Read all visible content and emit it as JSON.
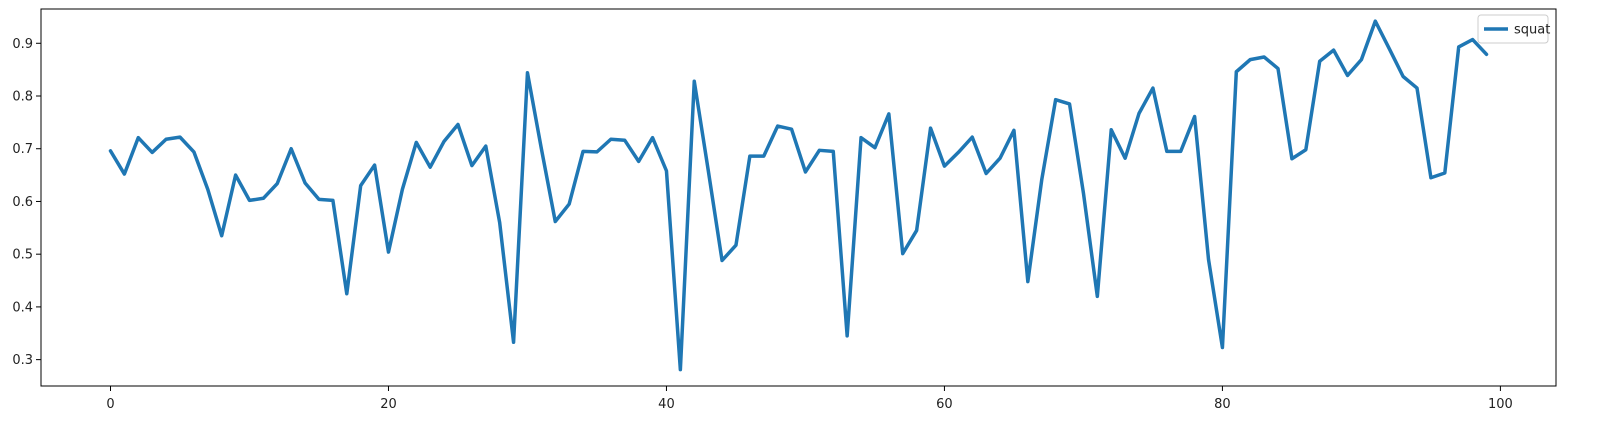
{
  "chart_data": {
    "type": "line",
    "title": "",
    "xlabel": "",
    "ylabel": "",
    "xlim": [
      -5,
      104
    ],
    "ylim": [
      0.25,
      0.965
    ],
    "x_ticks": [
      0,
      20,
      40,
      60,
      80,
      100
    ],
    "y_ticks": [
      0.3,
      0.4,
      0.5,
      0.6,
      0.7,
      0.8,
      0.9
    ],
    "x_tick_labels": [
      "0",
      "20",
      "40",
      "60",
      "80",
      "100"
    ],
    "y_tick_labels": [
      "0.3",
      "0.4",
      "0.5",
      "0.6",
      "0.7",
      "0.8",
      "0.9"
    ],
    "grid": false,
    "legend": {
      "position": "top-right"
    },
    "series": [
      {
        "name": "squat",
        "color": "#1f77b4",
        "x": [
          0,
          1,
          2,
          3,
          4,
          5,
          6,
          7,
          8,
          9,
          10,
          11,
          12,
          13,
          14,
          15,
          16,
          17,
          18,
          19,
          20,
          21,
          22,
          23,
          24,
          25,
          26,
          27,
          28,
          29,
          30,
          31,
          32,
          33,
          34,
          35,
          36,
          37,
          38,
          39,
          40,
          41,
          42,
          43,
          44,
          45,
          46,
          47,
          48,
          49,
          50,
          51,
          52,
          53,
          54,
          55,
          56,
          57,
          58,
          59,
          60,
          61,
          62,
          63,
          64,
          65,
          66,
          67,
          68,
          69,
          70,
          71,
          72,
          73,
          74,
          75,
          76,
          77,
          78,
          79,
          80,
          81,
          82,
          83,
          84,
          85,
          86,
          87,
          88,
          89,
          90,
          91,
          92,
          93,
          94,
          95,
          96,
          97,
          98,
          99
        ],
        "values": [
          0.696,
          0.652,
          0.721,
          0.693,
          0.718,
          0.722,
          0.694,
          0.623,
          0.535,
          0.65,
          0.602,
          0.606,
          0.634,
          0.7,
          0.635,
          0.604,
          0.602,
          0.425,
          0.63,
          0.669,
          0.504,
          0.623,
          0.712,
          0.665,
          0.714,
          0.746,
          0.668,
          0.705,
          0.56,
          0.333,
          0.844,
          0.7,
          0.562,
          0.595,
          0.695,
          0.694,
          0.718,
          0.716,
          0.676,
          0.721,
          0.658,
          0.281,
          0.828,
          0.66,
          0.488,
          0.517,
          0.686,
          0.686,
          0.743,
          0.737,
          0.656,
          0.697,
          0.695,
          0.345,
          0.721,
          0.702,
          0.766,
          0.501,
          0.545,
          0.739,
          0.667,
          0.693,
          0.722,
          0.653,
          0.682,
          0.735,
          0.448,
          0.641,
          0.793,
          0.785,
          0.616,
          0.42,
          0.736,
          0.682,
          0.767,
          0.815,
          0.695,
          0.695,
          0.761,
          0.49,
          0.323,
          0.846,
          0.869,
          0.874,
          0.852,
          0.681,
          0.698,
          0.866,
          0.887,
          0.839,
          0.869,
          0.942,
          0.89,
          0.837,
          0.815,
          0.645,
          0.654,
          0.893,
          0.907,
          0.879
        ]
      }
    ]
  }
}
